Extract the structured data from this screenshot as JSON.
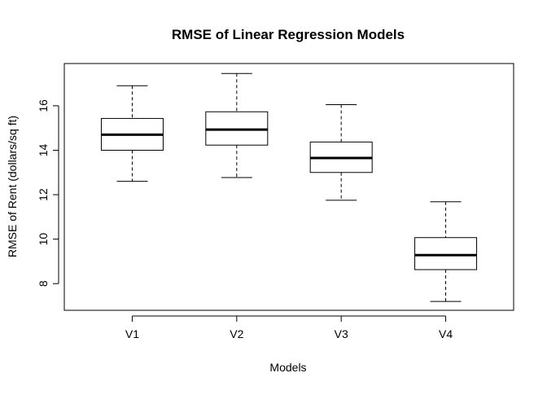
{
  "chart_data": {
    "type": "boxplot",
    "title": "RMSE of Linear Regression Models",
    "xlabel": "Models",
    "ylabel": "RMSE of Rent (dollars/sq ft)",
    "ylim": [
      6.8,
      17.9
    ],
    "yticks": [
      8,
      10,
      12,
      14,
      16
    ],
    "grid": false,
    "categories": [
      "V1",
      "V2",
      "V3",
      "V4"
    ],
    "boxes": [
      {
        "name": "V1",
        "min": 12.6,
        "q1": 14.0,
        "median": 14.7,
        "q3": 15.43,
        "max": 16.9
      },
      {
        "name": "V2",
        "min": 12.77,
        "q1": 14.23,
        "median": 14.93,
        "q3": 15.73,
        "max": 17.45
      },
      {
        "name": "V3",
        "min": 11.75,
        "q1": 13.0,
        "median": 13.65,
        "q3": 14.37,
        "max": 16.05
      },
      {
        "name": "V4",
        "min": 7.2,
        "q1": 8.63,
        "median": 9.28,
        "q3": 10.07,
        "max": 11.68
      }
    ]
  }
}
